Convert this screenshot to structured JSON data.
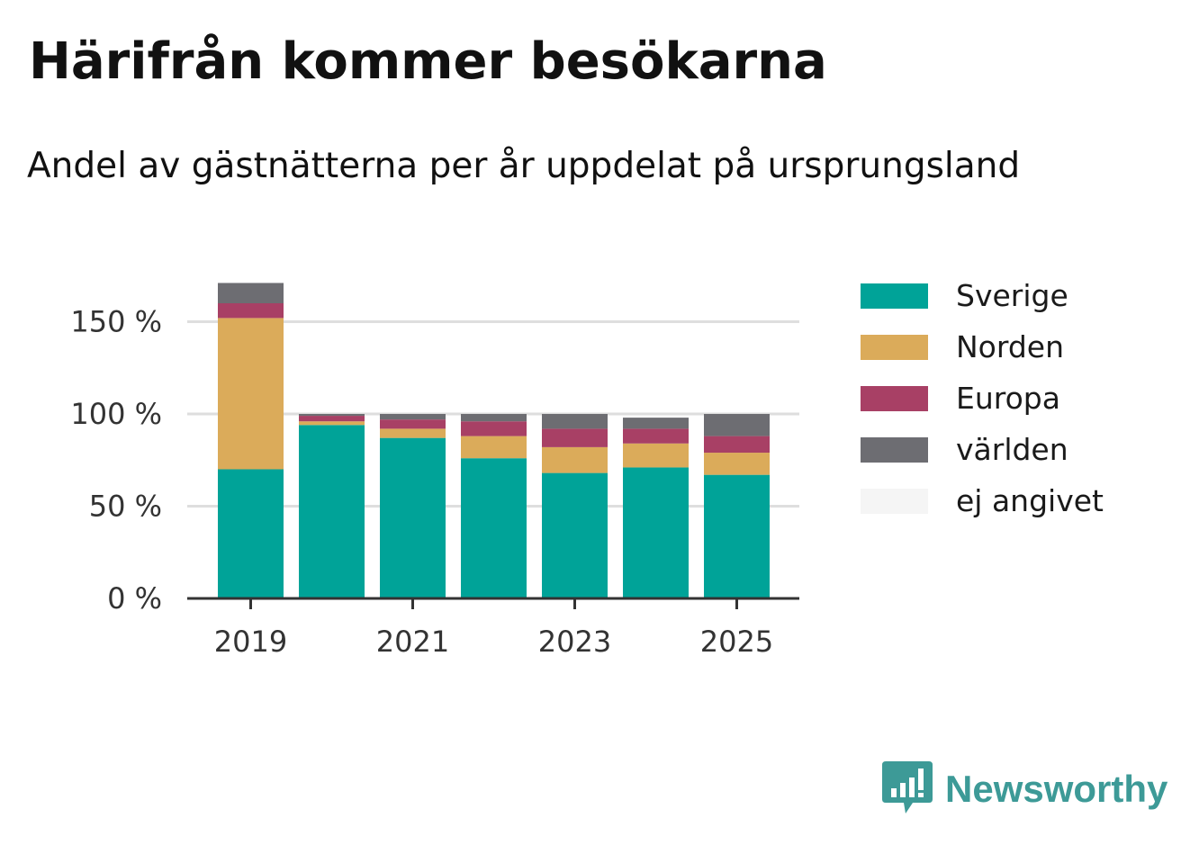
{
  "header": {
    "title": "Härifrån kommer besökarna",
    "subtitle": "Andel av gästnätterna per år uppdelat på ursprungsland"
  },
  "brand": {
    "name": "Newsworthy",
    "icon": "newsworthy-logo-icon",
    "color": "#3d9a97"
  },
  "chart_data": {
    "type": "bar",
    "stacked": true,
    "categories": [
      "2019",
      "2020",
      "2021",
      "2022",
      "2023",
      "2024",
      "2025"
    ],
    "x_tick_labels": [
      "2019",
      "2021",
      "2023",
      "2025"
    ],
    "y_tick_labels": [
      "0 %",
      "50 %",
      "100 %",
      "150 %"
    ],
    "y_ticks": [
      0,
      50,
      100,
      150
    ],
    "ylim": [
      0,
      175
    ],
    "grid": true,
    "legend_position": "right",
    "series": [
      {
        "name": "Sverige",
        "color": "#00a398",
        "values": [
          70,
          94,
          87,
          76,
          68,
          71,
          67
        ]
      },
      {
        "name": "Norden",
        "color": "#dbab5a",
        "values": [
          82,
          2,
          5,
          12,
          14,
          13,
          12
        ]
      },
      {
        "name": "Europa",
        "color": "#a84065",
        "values": [
          8,
          3,
          5,
          8,
          10,
          8,
          9
        ]
      },
      {
        "name": "världen",
        "color": "#6d6d72",
        "values": [
          11,
          1,
          3,
          4,
          8,
          6,
          12
        ]
      },
      {
        "name": "ej angivet",
        "color": "#f5f5f5",
        "values": [
          0,
          0,
          0,
          0,
          0,
          0,
          0
        ]
      }
    ]
  }
}
